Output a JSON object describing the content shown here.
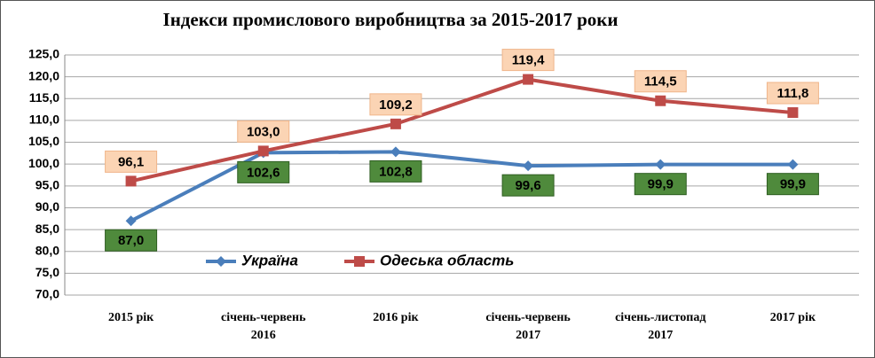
{
  "chart_data": {
    "type": "line",
    "title": "Індекси промислового виробництва за 2015-2017 роки",
    "categories": [
      "2015 рік",
      "січень-червень 2016",
      "2016 рік",
      "січень-червень 2017",
      "січень-листопад 2017",
      "2017 рік"
    ],
    "series": [
      {
        "name": "Україна",
        "color": "#4a7ebb",
        "values": [
          87.0,
          102.6,
          102.8,
          99.6,
          99.9,
          99.9
        ],
        "value_labels": [
          "87,0",
          "102,6",
          "102,8",
          "99,6",
          "99,9",
          "99,9"
        ]
      },
      {
        "name": "Одеська область",
        "color": "#be4b48",
        "values": [
          96.1,
          103.0,
          109.2,
          119.4,
          114.5,
          111.8
        ],
        "value_labels": [
          "96,1",
          "103,0",
          "109,2",
          "119,4",
          "114,5",
          "111,8"
        ]
      }
    ],
    "ylim": [
      70,
      125
    ],
    "yticks": [
      {
        "value": 70,
        "label": "70,0"
      },
      {
        "value": 75,
        "label": "75,0"
      },
      {
        "value": 80,
        "label": "80,0"
      },
      {
        "value": 85,
        "label": "85,0"
      },
      {
        "value": 90,
        "label": "90,0"
      },
      {
        "value": 95,
        "label": "95,0"
      },
      {
        "value": 100,
        "label": "100,0"
      },
      {
        "value": 105,
        "label": "105,0"
      },
      {
        "value": 110,
        "label": "110,0"
      },
      {
        "value": 115,
        "label": "115,0"
      },
      {
        "value": 120,
        "label": "120,0"
      },
      {
        "value": 125,
        "label": "125,0"
      }
    ],
    "grid": true
  }
}
